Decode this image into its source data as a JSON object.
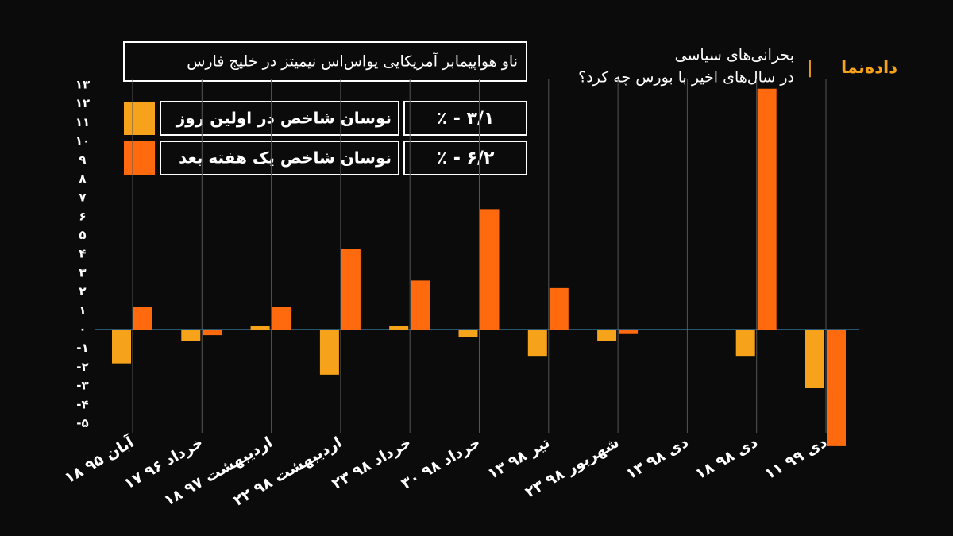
{
  "chart_data": {
    "type": "bar",
    "brand": "داده‌نما",
    "title": "بحرانی‌های سیاسی",
    "subtitle": "در سال‌های اخیر با بورس چه کرد؟",
    "annotation": {
      "title": "ناو هواپیمابر آمریکایی یواس‌اس نیمیتز در خلیج فارس",
      "values": [
        "٪ - ۳/۱",
        "٪ - ۶/۲"
      ]
    },
    "categories": [
      "۱۸ آبان ۹۵",
      "۱۷ خرداد ۹۶",
      "۱۸ اردیبهشت ۹۷",
      "۲۲ اردیبهشت ۹۸",
      "۲۳ خرداد ۹۸",
      "۳۰ خرداد ۹۸",
      "۱۳ تیر ۹۸",
      "۲۳ شهریور ۹۸",
      "۱۳ دی ۹۸",
      "۱۸ دی ۹۸",
      "۱۱ دی ۹۹"
    ],
    "series": [
      {
        "name": "نوسان شاخص در اولین روز",
        "color": "#f7a21b",
        "values": [
          -1.8,
          -0.6,
          0.2,
          -2.4,
          0.2,
          -0.4,
          -1.4,
          -0.6,
          null,
          -1.4,
          -3.1
        ]
      },
      {
        "name": "نوسان شاخص یک هفته بعد",
        "color": "#ff6a0f",
        "values": [
          1.2,
          -0.3,
          1.2,
          4.3,
          2.6,
          6.4,
          2.2,
          -0.2,
          null,
          12.8,
          -6.2
        ]
      }
    ],
    "ylim": [
      -6.5,
      13
    ],
    "yticks": [
      {
        "value": 13,
        "label": "۱۳"
      },
      {
        "value": 12,
        "label": "۱۲"
      },
      {
        "value": 11,
        "label": "۱۱"
      },
      {
        "value": 10,
        "label": "۱۰"
      },
      {
        "value": 9,
        "label": "۹"
      },
      {
        "value": 8,
        "label": "۸"
      },
      {
        "value": 7,
        "label": "۷"
      },
      {
        "value": 6,
        "label": "۶"
      },
      {
        "value": 5,
        "label": "۵"
      },
      {
        "value": 4,
        "label": "۴"
      },
      {
        "value": 3,
        "label": "۳"
      },
      {
        "value": 2,
        "label": "۲"
      },
      {
        "value": 1,
        "label": "۱"
      },
      {
        "value": 0,
        "label": "۰"
      },
      {
        "value": -1,
        "label": "-۱"
      },
      {
        "value": -2,
        "label": "-۲"
      },
      {
        "value": -3,
        "label": "-۳"
      },
      {
        "value": -4,
        "label": "-۴"
      },
      {
        "value": -5,
        "label": "-۵"
      }
    ]
  }
}
